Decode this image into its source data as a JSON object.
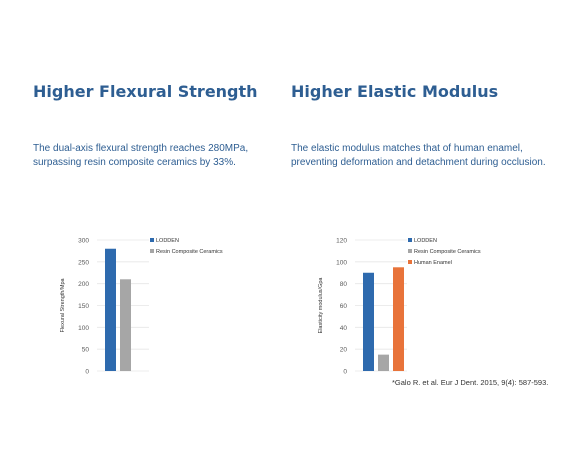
{
  "left": {
    "heading": "Higher Flexural Strength",
    "description_lines": [
      "The dual-axis flexural strength reaches 280MPa,",
      "surpassing resin composite ceramics by 33%."
    ]
  },
  "right": {
    "heading": "Higher Elastic Modulus",
    "description_lines": [
      "The elastic modulus matches that of human enamel,",
      "preventing deformation and detachment during occlusion."
    ]
  },
  "citation": "*Galo R. et al. Eur J Dent. 2015, 9(4): 587-593.",
  "colors": {
    "heading": "#2e5e92",
    "lodden": "#2e6aae",
    "resin": "#a6a6a6",
    "enamel": "#e8733a",
    "grid": "#e6e6e6",
    "axis_text": "#595959"
  },
  "chart_data": [
    {
      "type": "bar",
      "title": "",
      "xlabel": "",
      "ylabel": "Flexural Strength/Mpa",
      "ylim": [
        0,
        300
      ],
      "yticks": [
        0,
        50,
        100,
        150,
        200,
        250,
        300
      ],
      "grid": true,
      "legend_position": "right",
      "series": [
        {
          "name": "LODDEN",
          "value": 280,
          "color": "#2e6aae"
        },
        {
          "name": "Resin Composite Ceramics",
          "value": 210,
          "color": "#a6a6a6"
        }
      ]
    },
    {
      "type": "bar",
      "title": "",
      "xlabel": "",
      "ylabel": "Elasticity modulus/Gpa",
      "ylim": [
        0,
        120
      ],
      "yticks": [
        0,
        20,
        40,
        60,
        80,
        100,
        120
      ],
      "grid": true,
      "legend_position": "right",
      "series": [
        {
          "name": "LODDEN",
          "value": 90,
          "color": "#2e6aae"
        },
        {
          "name": "Resin Composite Ceramics",
          "value": 15,
          "color": "#a6a6a6"
        },
        {
          "name": "Human Enamel",
          "value": 95,
          "color": "#e8733a"
        }
      ]
    }
  ]
}
